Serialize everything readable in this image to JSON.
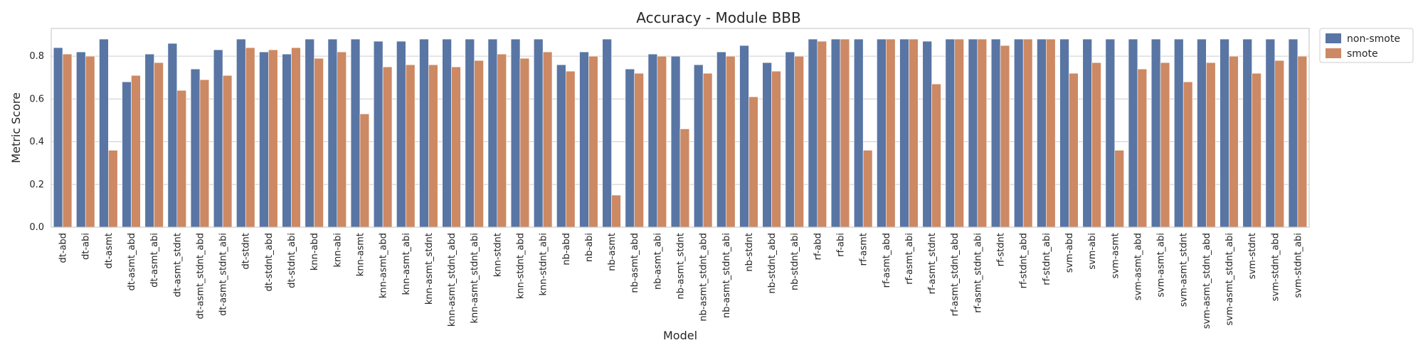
{
  "chart_data": {
    "type": "bar",
    "title": "Accuracy - Module BBB",
    "xlabel": "Model",
    "ylabel": "Metric Score",
    "ylim": [
      0,
      0.93
    ],
    "yticks": [
      0.0,
      0.2,
      0.4,
      0.6,
      0.8
    ],
    "ytick_labels": [
      "0.0",
      "0.2",
      "0.4",
      "0.6",
      "0.8"
    ],
    "grid": true,
    "legend_position": "outside-top-right",
    "colors": {
      "non-smote": "#5875a4",
      "smote": "#cc8963"
    },
    "categories": [
      "dt-abd",
      "dt-abi",
      "dt-asmt",
      "dt-asmt_abd",
      "dt-asmt_abi",
      "dt-asmt_stdnt",
      "dt-asmt_stdnt_abd",
      "dt-asmt_stdnt_abi",
      "dt-stdnt",
      "dt-stdnt_abd",
      "dt-stdnt_abi",
      "knn-abd",
      "knn-abi",
      "knn-asmt",
      "knn-asmt_abd",
      "knn-asmt_abi",
      "knn-asmt_stdnt",
      "knn-asmt_stdnt_abd",
      "knn-asmt_stdnt_abi",
      "knn-stdnt",
      "knn-stdnt_abd",
      "knn-stdnt_abi",
      "nb-abd",
      "nb-abi",
      "nb-asmt",
      "nb-asmt_abd",
      "nb-asmt_abi",
      "nb-asmt_stdnt",
      "nb-asmt_stdnt_abd",
      "nb-asmt_stdnt_abi",
      "nb-stdnt",
      "nb-stdnt_abd",
      "nb-stdnt_abi",
      "rf-abd",
      "rf-abi",
      "rf-asmt",
      "rf-asmt_abd",
      "rf-asmt_abi",
      "rf-asmt_stdnt",
      "rf-asmt_stdnt_abd",
      "rf-asmt_stdnt_abi",
      "rf-stdnt",
      "rf-stdnt_abd",
      "rf-stdnt_abi",
      "svm-abd",
      "svm-abi",
      "svm-asmt",
      "svm-asmt_abd",
      "svm-asmt_abi",
      "svm-asmt_stdnt",
      "svm-asmt_stdnt_abd",
      "svm-asmt_stdnt_abi",
      "svm-stdnt",
      "svm-stdnt_abd",
      "svm-stdnt_abi"
    ],
    "series": [
      {
        "name": "non-smote",
        "values": [
          0.84,
          0.82,
          0.88,
          0.68,
          0.81,
          0.86,
          0.74,
          0.83,
          0.88,
          0.82,
          0.81,
          0.88,
          0.88,
          0.88,
          0.87,
          0.87,
          0.88,
          0.88,
          0.88,
          0.88,
          0.88,
          0.88,
          0.76,
          0.82,
          0.88,
          0.74,
          0.81,
          0.8,
          0.76,
          0.82,
          0.85,
          0.77,
          0.82,
          0.88,
          0.88,
          0.88,
          0.88,
          0.88,
          0.87,
          0.88,
          0.88,
          0.88,
          0.88,
          0.88,
          0.88,
          0.88,
          0.88,
          0.88,
          0.88,
          0.88,
          0.88,
          0.88,
          0.88,
          0.88,
          0.88
        ]
      },
      {
        "name": "smote",
        "values": [
          0.81,
          0.8,
          0.36,
          0.71,
          0.77,
          0.64,
          0.69,
          0.71,
          0.84,
          0.83,
          0.84,
          0.79,
          0.82,
          0.53,
          0.75,
          0.76,
          0.76,
          0.75,
          0.78,
          0.81,
          0.79,
          0.82,
          0.73,
          0.8,
          0.15,
          0.72,
          0.8,
          0.46,
          0.72,
          0.8,
          0.61,
          0.73,
          0.8,
          0.87,
          0.88,
          0.36,
          0.88,
          0.88,
          0.67,
          0.88,
          0.88,
          0.85,
          0.88,
          0.88,
          0.72,
          0.77,
          0.36,
          0.74,
          0.77,
          0.68,
          0.77,
          0.8,
          0.72,
          0.78,
          0.8
        ]
      }
    ]
  }
}
